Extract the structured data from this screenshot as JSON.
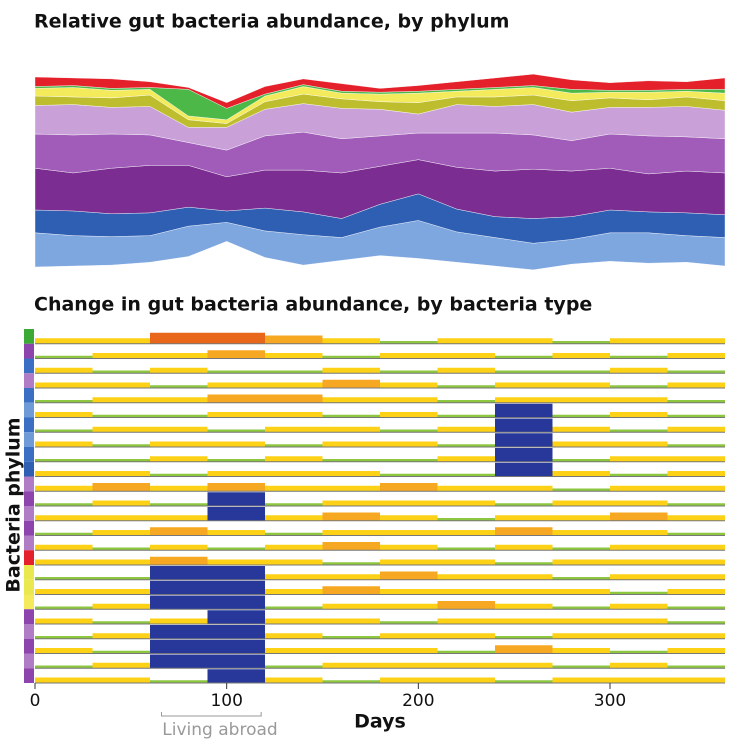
{
  "chart_data": [
    {
      "type": "streamgraph",
      "title": "Relative gut bacteria abundance, by phylum",
      "x": [
        0,
        20,
        40,
        60,
        80,
        100,
        120,
        140,
        160,
        180,
        200,
        220,
        240,
        260,
        280,
        300,
        320,
        340,
        360
      ],
      "xlim": [
        0,
        360
      ],
      "series": [
        {
          "color": "#7ea6df",
          "values": [
            18,
            16,
            15,
            14,
            16,
            10,
            14,
            16,
            12,
            15,
            20,
            16,
            15,
            14,
            13,
            15,
            16,
            14,
            15
          ]
        },
        {
          "color": "#2f5fb3",
          "values": [
            12,
            13,
            12,
            12,
            10,
            6,
            12,
            12,
            10,
            12,
            14,
            12,
            11,
            13,
            12,
            12,
            11,
            12,
            12
          ]
        },
        {
          "color": "#7b2d91",
          "values": [
            22,
            20,
            24,
            25,
            22,
            18,
            20,
            22,
            24,
            20,
            18,
            22,
            24,
            26,
            24,
            22,
            20,
            22,
            22
          ]
        },
        {
          "color": "#a05cb8",
          "values": [
            18,
            20,
            18,
            16,
            12,
            14,
            18,
            20,
            18,
            16,
            14,
            18,
            20,
            18,
            16,
            18,
            20,
            18,
            18
          ]
        },
        {
          "color": "#c9a0d8",
          "values": [
            15,
            16,
            14,
            15,
            8,
            12,
            14,
            15,
            16,
            14,
            10,
            15,
            14,
            16,
            15,
            14,
            15,
            16,
            15
          ]
        },
        {
          "color": "#bdbd2e",
          "values": [
            5,
            4,
            5,
            6,
            4,
            2,
            4,
            5,
            5,
            4,
            6,
            4,
            5,
            5,
            6,
            5,
            4,
            5,
            5
          ]
        },
        {
          "color": "#f3ea5c",
          "values": [
            4,
            5,
            4,
            3,
            2,
            2,
            3,
            4,
            3,
            4,
            5,
            3,
            4,
            4,
            4,
            3,
            4,
            3,
            4
          ]
        },
        {
          "color": "#4cb848",
          "values": [
            1,
            1,
            1,
            1,
            14,
            6,
            1,
            1,
            1,
            1,
            1,
            1,
            1,
            1,
            2,
            1,
            1,
            1,
            2
          ]
        },
        {
          "color": "#e4202a",
          "values": [
            5,
            4,
            5,
            3,
            1,
            3,
            4,
            3,
            4,
            2,
            3,
            4,
            5,
            6,
            5,
            4,
            5,
            4,
            6
          ]
        }
      ]
    },
    {
      "type": "horizon",
      "title": "Change in gut bacteria abundance, by bacteria type",
      "xlabel": "Days",
      "ylabel": "Bacteria phylum",
      "bins": [
        0,
        30,
        60,
        90,
        120,
        150,
        180,
        210,
        240,
        270,
        300,
        330,
        360
      ],
      "xlim": [
        0,
        360
      ],
      "xticks": [
        0,
        100,
        200,
        300
      ],
      "level_colors": [
        "#8dc63f",
        "#fcd116",
        "#f7a823",
        "#e8671b",
        "#27389a"
      ],
      "annotation": {
        "text": "Living abroad",
        "start": 66,
        "end": 118
      },
      "rows": [
        {
          "color": "#3aaa35",
          "values": [
            1,
            1,
            3,
            3,
            2,
            1,
            0,
            1,
            1,
            0,
            1,
            1
          ]
        },
        {
          "color": "#8e44ad",
          "values": [
            0,
            1,
            1,
            2,
            1,
            0,
            1,
            1,
            0,
            1,
            0,
            1
          ]
        },
        {
          "color": "#3b6fc4",
          "values": [
            1,
            0,
            1,
            0,
            0,
            1,
            0,
            1,
            0,
            0,
            1,
            0
          ]
        },
        {
          "color": "#b07cc6",
          "values": [
            1,
            1,
            0,
            1,
            1,
            2,
            1,
            0,
            1,
            1,
            0,
            1
          ]
        },
        {
          "color": "#3b6fc4",
          "values": [
            0,
            1,
            1,
            2,
            2,
            1,
            1,
            0,
            1,
            1,
            1,
            0
          ]
        },
        {
          "color": "#6f9ad8",
          "values": [
            1,
            0,
            0,
            1,
            1,
            0,
            1,
            0,
            4,
            0,
            1,
            0
          ]
        },
        {
          "color": "#3b6fc4",
          "values": [
            0,
            1,
            1,
            0,
            1,
            1,
            0,
            1,
            4,
            1,
            0,
            1
          ]
        },
        {
          "color": "#6f9ad8",
          "values": [
            1,
            0,
            1,
            1,
            0,
            1,
            1,
            0,
            4,
            1,
            1,
            0
          ]
        },
        {
          "color": "#3b6fc4",
          "values": [
            0,
            0,
            1,
            0,
            1,
            0,
            0,
            1,
            4,
            0,
            1,
            1
          ]
        },
        {
          "color": "#2f5fb3",
          "values": [
            1,
            1,
            0,
            1,
            1,
            1,
            0,
            0,
            4,
            1,
            0,
            1
          ]
        },
        {
          "color": "#b07cc6",
          "values": [
            1,
            2,
            1,
            2,
            1,
            1,
            2,
            1,
            1,
            0,
            1,
            1
          ]
        },
        {
          "color": "#8e44ad",
          "values": [
            0,
            1,
            0,
            4,
            0,
            1,
            1,
            1,
            0,
            1,
            1,
            0
          ]
        },
        {
          "color": "#b07cc6",
          "values": [
            1,
            1,
            1,
            4,
            1,
            2,
            1,
            0,
            1,
            1,
            2,
            1
          ]
        },
        {
          "color": "#8e44ad",
          "values": [
            0,
            1,
            2,
            1,
            0,
            1,
            1,
            1,
            2,
            1,
            1,
            0
          ]
        },
        {
          "color": "#b07cc6",
          "values": [
            1,
            0,
            1,
            0,
            1,
            2,
            1,
            0,
            1,
            0,
            1,
            1
          ]
        },
        {
          "color": "#e4202a",
          "values": [
            1,
            1,
            2,
            1,
            1,
            0,
            1,
            1,
            0,
            1,
            1,
            1
          ]
        },
        {
          "color": "#e9e94f",
          "values": [
            0,
            0,
            4,
            4,
            1,
            1,
            2,
            1,
            1,
            0,
            1,
            1
          ]
        },
        {
          "color": "#e9e94f",
          "values": [
            1,
            1,
            4,
            4,
            1,
            2,
            1,
            1,
            1,
            1,
            0,
            1
          ]
        },
        {
          "color": "#f3ea5c",
          "values": [
            0,
            1,
            4,
            4,
            0,
            1,
            1,
            2,
            1,
            0,
            1,
            0
          ]
        },
        {
          "color": "#8e44ad",
          "values": [
            1,
            0,
            1,
            4,
            1,
            1,
            0,
            1,
            1,
            1,
            1,
            0
          ]
        },
        {
          "color": "#b07cc6",
          "values": [
            0,
            1,
            4,
            4,
            1,
            0,
            1,
            1,
            0,
            1,
            1,
            1
          ]
        },
        {
          "color": "#8e44ad",
          "values": [
            1,
            0,
            4,
            4,
            1,
            1,
            1,
            0,
            2,
            1,
            0,
            1
          ]
        },
        {
          "color": "#b07cc6",
          "values": [
            0,
            1,
            4,
            4,
            0,
            1,
            1,
            1,
            1,
            0,
            1,
            0
          ]
        },
        {
          "color": "#8e44ad",
          "values": [
            1,
            1,
            0,
            4,
            1,
            0,
            1,
            1,
            0,
            1,
            1,
            1
          ]
        }
      ]
    }
  ]
}
